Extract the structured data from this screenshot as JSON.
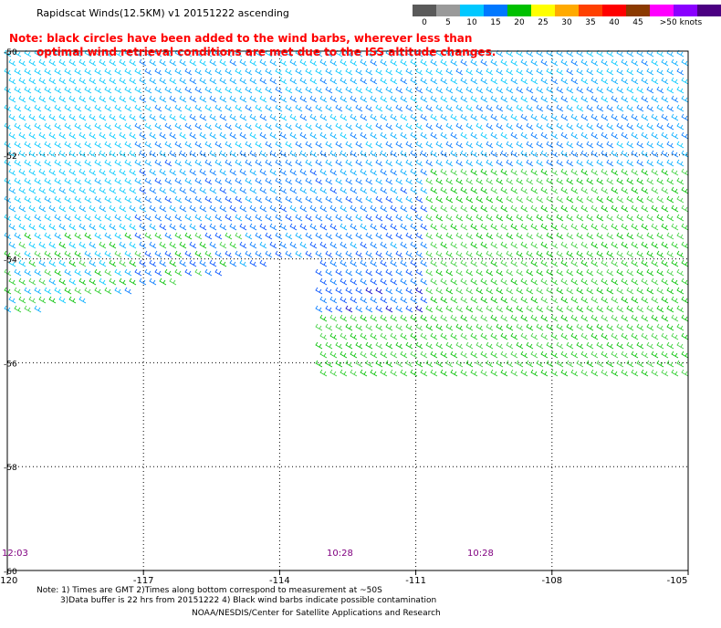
{
  "header": {
    "title": "Rapidscat Winds(12.5KM) v1 20151222 ascending"
  },
  "legend": {
    "labels": [
      "0",
      "5",
      "10",
      "15",
      "20",
      "25",
      "30",
      "35",
      "40",
      "45",
      ">50 knots"
    ],
    "colors": [
      "#5a5a5a",
      "#9a9a9a",
      "#00c8ff",
      "#0078ff",
      "#00c000",
      "#ffff00",
      "#ffaa00",
      "#ff4000",
      "#ff0000",
      "#8b3a00",
      "#ff00ff",
      "#8a00ff",
      "#4b0082"
    ]
  },
  "note": {
    "line1": "Note: black circles have been added to the wind barbs, wherever less than",
    "line2": "optimal wind retrieval conditions are met due to the ISS altitude changes."
  },
  "axes": {
    "lon_labels": [
      "-120",
      "-117",
      "-114",
      "-111",
      "-108",
      "-105"
    ],
    "lat_labels": [
      "-50",
      "-52",
      "-54",
      "-56",
      "-58",
      "-60"
    ]
  },
  "times": [
    "12:03",
    "10:28",
    "10:28"
  ],
  "footer": {
    "line1": "Note: 1) Times are GMT 2)Times along bottom correspond to measurement at ~50S",
    "line2": "3)Data buffer is 22 hrs from 20151222 4) Black wind barbs indicate possible contamination",
    "line3": "NOAA/NESDIS/Center for Satellite Applications and Research"
  }
}
